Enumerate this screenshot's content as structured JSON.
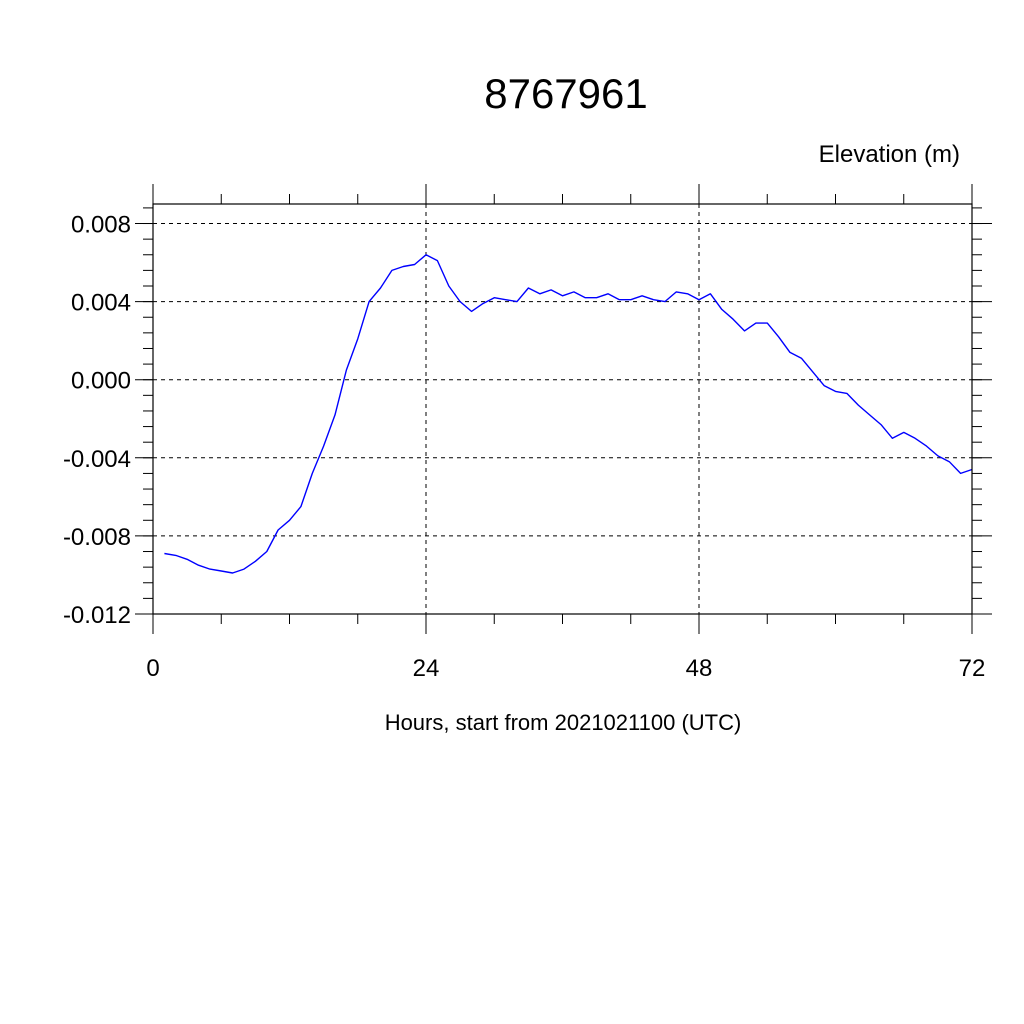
{
  "chart_data": {
    "type": "line",
    "title": "8767961",
    "ylabel": "Elevation (m)",
    "xlabel": "Hours, start from 2021021100 (UTC)",
    "xlim": [
      0,
      72
    ],
    "ylim": [
      -0.012,
      0.009
    ],
    "x_ticks": [
      0,
      24,
      48,
      72
    ],
    "x_tick_labels": [
      "0",
      "24",
      "48",
      "72"
    ],
    "y_ticks": [
      -0.012,
      -0.008,
      -0.004,
      0.0,
      0.004,
      0.008
    ],
    "y_tick_labels": [
      "-0.012",
      "-0.008",
      "-0.004",
      "0.000",
      "0.004",
      "0.008"
    ],
    "grid": true,
    "series": [
      {
        "color": "#0000ff",
        "x": [
          1,
          2,
          3,
          4,
          5,
          6,
          7,
          8,
          9,
          10,
          11,
          12,
          13,
          14,
          15,
          16,
          17,
          18,
          19,
          20,
          21,
          22,
          23,
          24,
          25,
          26,
          27,
          28,
          29,
          30,
          31,
          32,
          33,
          34,
          35,
          36,
          37,
          38,
          39,
          40,
          41,
          42,
          43,
          44,
          45,
          46,
          47,
          48,
          49,
          50,
          51,
          52,
          53,
          54,
          55,
          56,
          57,
          58,
          59,
          60,
          61,
          62,
          63,
          64,
          65,
          66,
          67,
          68,
          69,
          70,
          71,
          72
        ],
        "y": [
          -0.0089,
          -0.009,
          -0.0092,
          -0.0095,
          -0.0097,
          -0.0098,
          -0.0099,
          -0.0097,
          -0.0093,
          -0.0088,
          -0.0077,
          -0.0072,
          -0.0065,
          -0.0048,
          -0.0034,
          -0.0018,
          0.0005,
          0.0021,
          0.004,
          0.0047,
          0.0056,
          0.0058,
          0.0059,
          0.0064,
          0.0061,
          0.0048,
          0.004,
          0.0035,
          0.0039,
          0.0042,
          0.0041,
          0.004,
          0.0047,
          0.0044,
          0.0046,
          0.0043,
          0.0045,
          0.0042,
          0.0042,
          0.0044,
          0.0041,
          0.0041,
          0.0043,
          0.0041,
          0.004,
          0.0045,
          0.0044,
          0.0041,
          0.0044,
          0.0036,
          0.0031,
          0.0025,
          0.0029,
          0.0029,
          0.0022,
          0.0014,
          0.0011,
          0.0004,
          -0.0003,
          -0.0006,
          -0.0007,
          -0.0013,
          -0.0018,
          -0.0023,
          -0.003,
          -0.0027,
          -0.003,
          -0.0034,
          -0.0039,
          -0.0042,
          -0.0048,
          -0.0046
        ]
      }
    ]
  }
}
